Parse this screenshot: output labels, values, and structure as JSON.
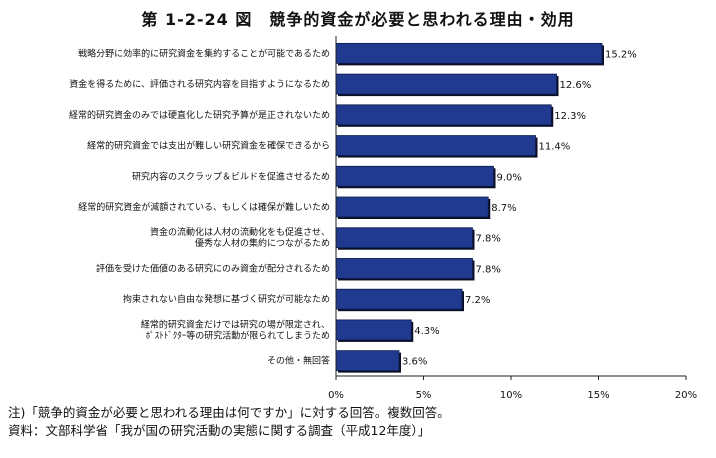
{
  "chart_data": {
    "type": "bar",
    "orientation": "horizontal",
    "title": "第 1-2-24 図　競争的資金が必要と思われる理由・効用",
    "categories": [
      "戦略分野に効率的に研究資金を集約することが可能であるため",
      "資金を得るために、評価される研究内容を目指すようになるため",
      "経常的研究資金のみでは硬直化した研究予算が是正されないため",
      "経常的研究資金では支出が難しい研究資金を確保できるから",
      "研究内容のスクラップ＆ビルドを促進させるため",
      "経常的研究資金が減額されている、もしくは確保が難しいため",
      "資金の流動化は人材の流動化をも促進させ、\n優秀な人材の集約につながるため",
      "評価を受けた価値のある研究にのみ資金が配分されるため",
      "拘束されない自由な発想に基づく研究が可能なため",
      "経常的研究資金だけでは研究の場が限定され、\nﾎﾟｽﾄﾄﾞｸﾀｰ等の研究活動が限られてしまうため",
      "その他・無回答"
    ],
    "values": [
      15.2,
      12.6,
      12.3,
      11.4,
      9.0,
      8.7,
      7.8,
      7.8,
      7.2,
      4.3,
      3.6
    ],
    "value_labels": [
      "15.2%",
      "12.6%",
      "12.3%",
      "11.4%",
      "9.0%",
      "8.7%",
      "7.8%",
      "7.8%",
      "7.2%",
      "4.3%",
      "3.6%"
    ],
    "xlim": [
      0,
      20
    ],
    "x_ticks": [
      0,
      5,
      10,
      15,
      20
    ],
    "x_tick_labels": [
      "0%",
      "5%",
      "10%",
      "15%",
      "20%"
    ],
    "bar_color": "#1f3a8f",
    "grid": false
  },
  "notes": {
    "note": "注)「競争的資金が必要と思われる理由は何ですか」に対する回答。複数回答。",
    "source": "資料：文部科学省「我が国の研究活動の実態に関する調査（平成12年度）」"
  }
}
